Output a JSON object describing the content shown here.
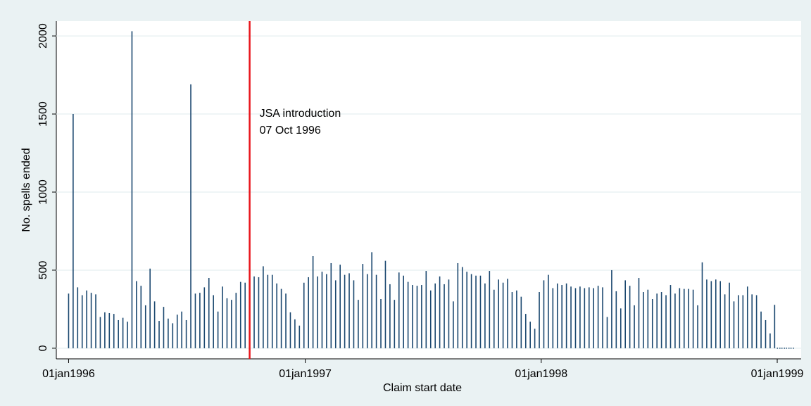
{
  "chart_data": {
    "type": "spike",
    "x_label": "Claim start date",
    "y_label": "No. spells ended",
    "color": "#1a476f",
    "x": [
      "1996-01-01",
      "1996-01-08",
      "1996-01-15",
      "1996-01-22",
      "1996-01-29",
      "1996-02-05",
      "1996-02-12",
      "1996-02-19",
      "1996-02-26",
      "1996-03-04",
      "1996-03-11",
      "1996-03-18",
      "1996-03-25",
      "1996-04-01",
      "1996-04-08",
      "1996-04-15",
      "1996-04-22",
      "1996-04-29",
      "1996-05-06",
      "1996-05-13",
      "1996-05-20",
      "1996-05-27",
      "1996-06-03",
      "1996-06-10",
      "1996-06-17",
      "1996-06-24",
      "1996-07-01",
      "1996-07-08",
      "1996-07-15",
      "1996-07-22",
      "1996-07-29",
      "1996-08-05",
      "1996-08-12",
      "1996-08-19",
      "1996-08-26",
      "1996-09-02",
      "1996-09-09",
      "1996-09-16",
      "1996-09-23",
      "1996-09-30",
      "1996-10-07",
      "1996-10-14",
      "1996-10-21",
      "1996-10-28",
      "1996-11-04",
      "1996-11-11",
      "1996-11-18",
      "1996-11-25",
      "1996-12-02",
      "1996-12-09",
      "1996-12-16",
      "1996-12-23",
      "1996-12-30",
      "1997-01-06",
      "1997-01-13",
      "1997-01-20",
      "1997-01-27",
      "1997-02-03",
      "1997-02-10",
      "1997-02-17",
      "1997-02-24",
      "1997-03-03",
      "1997-03-10",
      "1997-03-17",
      "1997-03-24",
      "1997-03-31",
      "1997-04-07",
      "1997-04-14",
      "1997-04-21",
      "1997-04-28",
      "1997-05-05",
      "1997-05-12",
      "1997-05-19",
      "1997-05-26",
      "1997-06-02",
      "1997-06-09",
      "1997-06-16",
      "1997-06-23",
      "1997-06-30",
      "1997-07-07",
      "1997-07-14",
      "1997-07-21",
      "1997-07-28",
      "1997-08-04",
      "1997-08-11",
      "1997-08-18",
      "1997-08-25",
      "1997-09-01",
      "1997-09-08",
      "1997-09-15",
      "1997-09-22",
      "1997-09-29",
      "1997-10-06",
      "1997-10-13",
      "1997-10-20",
      "1997-10-27",
      "1997-11-03",
      "1997-11-10",
      "1997-11-17",
      "1997-11-24",
      "1997-12-01",
      "1997-12-08",
      "1997-12-15",
      "1997-12-22",
      "1997-12-29",
      "1998-01-05",
      "1998-01-12",
      "1998-01-19",
      "1998-01-26",
      "1998-02-02",
      "1998-02-09",
      "1998-02-16",
      "1998-02-23",
      "1998-03-02",
      "1998-03-09",
      "1998-03-16",
      "1998-03-23",
      "1998-03-30",
      "1998-04-06",
      "1998-04-13",
      "1998-04-20",
      "1998-04-27",
      "1998-05-04",
      "1998-05-11",
      "1998-05-18",
      "1998-05-25",
      "1998-06-01",
      "1998-06-08",
      "1998-06-15",
      "1998-06-22",
      "1998-06-29",
      "1998-07-06",
      "1998-07-13",
      "1998-07-20",
      "1998-07-27",
      "1998-08-03",
      "1998-08-10",
      "1998-08-17",
      "1998-08-24",
      "1998-08-31",
      "1998-09-07",
      "1998-09-14",
      "1998-09-21",
      "1998-09-28",
      "1998-10-05",
      "1998-10-12",
      "1998-10-19",
      "1998-10-26",
      "1998-11-02",
      "1998-11-09",
      "1998-11-16",
      "1998-11-23",
      "1998-11-30",
      "1998-12-07",
      "1998-12-14",
      "1998-12-21",
      "1998-12-28",
      "1999-01-04",
      "1999-01-11",
      "1999-01-18",
      "1999-01-25"
    ],
    "values": [
      350,
      1500,
      390,
      340,
      370,
      355,
      345,
      200,
      230,
      225,
      220,
      180,
      195,
      170,
      2030,
      430,
      400,
      275,
      510,
      300,
      175,
      265,
      190,
      160,
      215,
      235,
      180,
      1690,
      350,
      355,
      390,
      450,
      340,
      235,
      395,
      320,
      310,
      355,
      425,
      420,
      2010,
      460,
      455,
      525,
      470,
      470,
      415,
      380,
      350,
      230,
      185,
      145,
      420,
      455,
      590,
      460,
      490,
      475,
      545,
      435,
      535,
      470,
      480,
      435,
      310,
      540,
      475,
      615,
      470,
      315,
      560,
      410,
      310,
      485,
      465,
      425,
      405,
      400,
      405,
      495,
      370,
      415,
      460,
      410,
      440,
      300,
      545,
      520,
      490,
      475,
      465,
      465,
      415,
      495,
      375,
      440,
      420,
      445,
      360,
      370,
      330,
      220,
      170,
      125,
      360,
      435,
      470,
      385,
      415,
      405,
      415,
      395,
      385,
      395,
      385,
      390,
      385,
      400,
      390,
      200,
      500,
      365,
      255,
      435,
      400,
      275,
      450,
      360,
      375,
      315,
      350,
      360,
      340,
      405,
      350,
      385,
      380,
      380,
      375,
      275,
      550,
      440,
      430,
      440,
      430,
      345,
      420,
      300,
      340,
      340,
      395,
      345,
      340,
      235,
      180,
      95,
      278,
      0,
      0,
      0,
      0
    ],
    "xlim": [
      "1995-12-13",
      "1999-02-07"
    ],
    "xticks": [
      {
        "value": "1996-01-01",
        "label": "01jan1996"
      },
      {
        "value": "1997-01-01",
        "label": "01jan1997"
      },
      {
        "value": "1998-01-01",
        "label": "01jan1998"
      },
      {
        "value": "1999-01-01",
        "label": "01jan1999"
      }
    ],
    "ylim": [
      -68,
      2095
    ],
    "yticks": [
      0,
      500,
      1000,
      1500,
      2000
    ],
    "grid": true,
    "vline": {
      "x": "1996-10-07",
      "color": "#e8141b",
      "label": [
        "JSA introduction",
        "07 Oct 1996"
      ]
    }
  }
}
